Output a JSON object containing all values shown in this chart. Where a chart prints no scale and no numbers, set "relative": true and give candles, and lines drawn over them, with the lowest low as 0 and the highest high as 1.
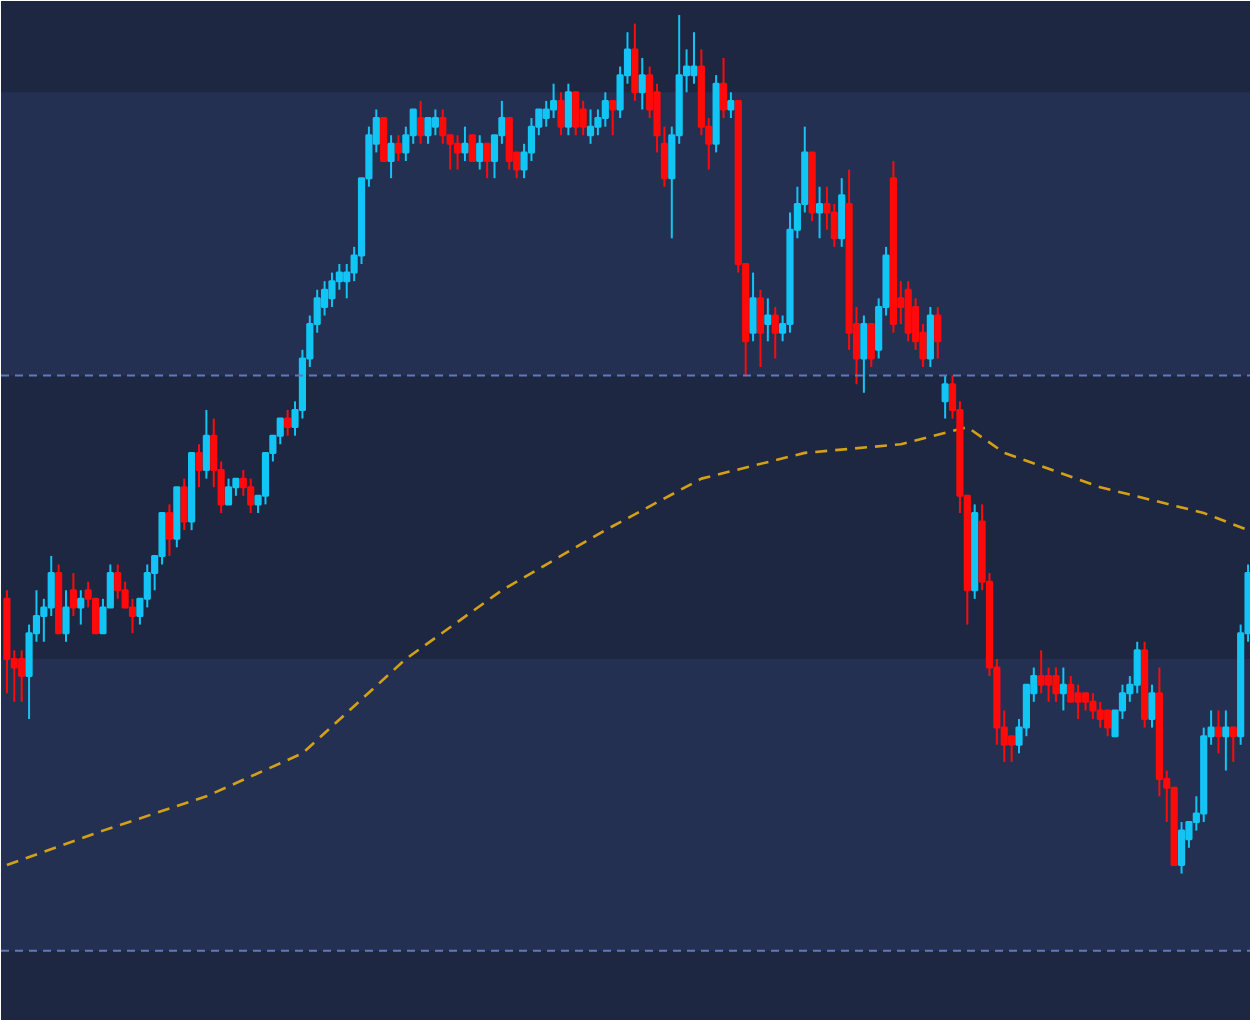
{
  "chart_data": {
    "type": "candlestick",
    "relative": true,
    "categories": [
      null,
      null,
      null,
      null,
      null,
      null,
      null,
      null,
      null,
      null,
      null,
      null,
      null,
      null,
      null,
      null,
      null,
      null,
      null,
      null,
      null,
      null,
      null,
      null,
      null,
      null,
      null,
      null,
      null,
      null,
      null,
      null,
      null,
      null,
      null,
      null,
      null,
      null,
      null,
      null,
      null,
      null,
      null,
      null,
      null,
      null,
      null,
      null,
      null,
      null,
      null,
      null,
      null,
      null,
      null,
      null,
      null,
      null,
      null,
      null,
      null,
      null,
      null,
      null,
      null,
      null,
      null,
      null,
      null,
      null,
      null,
      null,
      null,
      null,
      null,
      null,
      null,
      null,
      null,
      null,
      null,
      null,
      null,
      null,
      null,
      null,
      null,
      null,
      null,
      null,
      null,
      null,
      null,
      null,
      null,
      null,
      null,
      null,
      null,
      null,
      null,
      null,
      null,
      null,
      null,
      null,
      null,
      null,
      null,
      null,
      null,
      null,
      null,
      null,
      null,
      null,
      null,
      null,
      null,
      null,
      null,
      null,
      null,
      null,
      null,
      null,
      null,
      null,
      null,
      null,
      null,
      null,
      null,
      null,
      null,
      null,
      null,
      null,
      null,
      null,
      null,
      null,
      null,
      null,
      null,
      null,
      null,
      null,
      null,
      null,
      null,
      null,
      null,
      null,
      null,
      null,
      null,
      null,
      null,
      null,
      null,
      null,
      null,
      null,
      null,
      null,
      null,
      null,
      null
    ],
    "colors": [
      "#ff0a0a",
      "#ff0a0a",
      "#ff0a0a",
      "#12c5f5",
      "#12c5f5",
      "#12c5f5",
      "#12c5f5",
      "#ff0a0a",
      "#12c5f5",
      "#ff0a0a",
      "#12c5f5",
      "#ff0a0a",
      "#ff0a0a",
      "#12c5f5",
      "#12c5f5",
      "#ff0a0a",
      "#ff0a0a",
      "#ff0a0a",
      "#12c5f5",
      "#12c5f5",
      "#12c5f5",
      "#12c5f5",
      "#ff0a0a",
      "#12c5f5",
      "#ff0a0a",
      "#12c5f5",
      "#ff0a0a",
      "#12c5f5",
      "#ff0a0a",
      "#ff0a0a",
      "#12c5f5",
      "#12c5f5",
      "#ff0a0a",
      "#ff0a0a",
      "#12c5f5",
      "#12c5f5",
      "#12c5f5",
      "#12c5f5",
      "#ff0a0a",
      "#12c5f5",
      "#12c5f5",
      "#12c5f5",
      "#12c5f5",
      "#12c5f5",
      "#12c5f5",
      "#12c5f5",
      "#12c5f5",
      "#12c5f5",
      "#12c5f5",
      "#12c5f5",
      "#12c5f5",
      "#ff0a0a",
      "#12c5f5",
      "#ff0a0a",
      "#12c5f5",
      "#12c5f5",
      "#ff0a0a",
      "#12c5f5",
      "#12c5f5",
      "#ff0a0a",
      "#ff0a0a",
      "#ff0a0a",
      "#12c5f5",
      "#ff0a0a",
      "#12c5f5",
      "#ff0a0a",
      "#12c5f5",
      "#12c5f5",
      "#ff0a0a",
      "#ff0a0a",
      "#12c5f5",
      "#12c5f5",
      "#12c5f5",
      "#12c5f5",
      "#12c5f5",
      "#ff0a0a",
      "#12c5f5",
      "#ff0a0a",
      "#ff0a0a",
      "#12c5f5",
      "#12c5f5",
      "#12c5f5",
      "#ff0a0a",
      "#12c5f5",
      "#12c5f5",
      "#ff0a0a",
      "#12c5f5",
      "#ff0a0a",
      "#ff0a0a",
      "#ff0a0a",
      "#12c5f5",
      "#12c5f5",
      "#12c5f5",
      "#12c5f5",
      "#ff0a0a",
      "#ff0a0a",
      "#12c5f5",
      "#ff0a0a",
      "#12c5f5",
      "#ff0a0a",
      "#ff0a0a",
      "#12c5f5",
      "#ff0a0a",
      "#12c5f5",
      "#ff0a0a",
      "#12c5f5",
      "#12c5f5",
      "#12c5f5",
      "#12c5f5",
      "#ff0a0a",
      "#12c5f5",
      "#ff0a0a",
      "#ff0a0a",
      "#12c5f5",
      "#ff0a0a",
      "#ff0a0a",
      "#12c5f5",
      "#ff0a0a",
      "#12c5f5",
      "#12c5f5",
      "#ff0a0a",
      "#ff0a0a",
      "#ff0a0a",
      "#ff0a0a",
      "#ff0a0a",
      "#12c5f5",
      "#ff0a0a",
      "#12c5f5",
      "#ff0a0a",
      "#ff0a0a",
      "#ff0a0a",
      "#12c5f5",
      "#ff0a0a",
      "#ff0a0a",
      "#ff0a0a",
      "#ff0a0a",
      "#ff0a0a",
      "#12c5f5",
      "#12c5f5",
      "#12c5f5",
      "#ff0a0a",
      "#ff0a0a",
      "#ff0a0a",
      "#12c5f5",
      "#ff0a0a",
      "#ff0a0a",
      "#ff0a0a",
      "#ff0a0a",
      "#ff0a0a",
      "#ff0a0a",
      "#12c5f5",
      "#12c5f5",
      "#12c5f5",
      "#12c5f5",
      "#ff0a0a",
      "#12c5f5",
      "#ff0a0a",
      "#ff0a0a",
      "#ff0a0a",
      "#12c5f5",
      "#12c5f5",
      "#12c5f5",
      "#12c5f5",
      "#12c5f5",
      "#ff0a0a",
      "#12c5f5",
      "#ff0a0a",
      "#12c5f5",
      "#12c5f5"
    ],
    "ohlc": [
      [
        0.32,
        0.33,
        0.21,
        0.25
      ],
      [
        0.25,
        0.26,
        0.2,
        0.24
      ],
      [
        0.25,
        0.26,
        0.2,
        0.23
      ],
      [
        0.23,
        0.29,
        0.18,
        0.28
      ],
      [
        0.28,
        0.33,
        0.27,
        0.3
      ],
      [
        0.3,
        0.32,
        0.27,
        0.31
      ],
      [
        0.31,
        0.37,
        0.3,
        0.35
      ],
      [
        0.35,
        0.36,
        0.28,
        0.28
      ],
      [
        0.28,
        0.33,
        0.27,
        0.31
      ],
      [
        0.33,
        0.35,
        0.3,
        0.31
      ],
      [
        0.31,
        0.33,
        0.29,
        0.32
      ],
      [
        0.33,
        0.34,
        0.31,
        0.32
      ],
      [
        0.32,
        0.32,
        0.28,
        0.28
      ],
      [
        0.28,
        0.32,
        0.28,
        0.31
      ],
      [
        0.31,
        0.36,
        0.31,
        0.35
      ],
      [
        0.35,
        0.36,
        0.32,
        0.33
      ],
      [
        0.33,
        0.34,
        0.31,
        0.31
      ],
      [
        0.31,
        0.32,
        0.28,
        0.3
      ],
      [
        0.3,
        0.32,
        0.29,
        0.32
      ],
      [
        0.32,
        0.36,
        0.31,
        0.35
      ],
      [
        0.35,
        0.37,
        0.33,
        0.37
      ],
      [
        0.37,
        0.42,
        0.36,
        0.42
      ],
      [
        0.42,
        0.43,
        0.37,
        0.39
      ],
      [
        0.39,
        0.45,
        0.38,
        0.45
      ],
      [
        0.45,
        0.46,
        0.4,
        0.41
      ],
      [
        0.41,
        0.49,
        0.4,
        0.49
      ],
      [
        0.49,
        0.5,
        0.45,
        0.47
      ],
      [
        0.47,
        0.54,
        0.46,
        0.51
      ],
      [
        0.51,
        0.53,
        0.45,
        0.47
      ],
      [
        0.47,
        0.48,
        0.42,
        0.43
      ],
      [
        0.43,
        0.46,
        0.43,
        0.45
      ],
      [
        0.45,
        0.46,
        0.44,
        0.46
      ],
      [
        0.46,
        0.47,
        0.44,
        0.45
      ],
      [
        0.45,
        0.46,
        0.42,
        0.43
      ],
      [
        0.43,
        0.44,
        0.42,
        0.44
      ],
      [
        0.44,
        0.49,
        0.43,
        0.49
      ],
      [
        0.49,
        0.51,
        0.48,
        0.51
      ],
      [
        0.51,
        0.53,
        0.5,
        0.53
      ],
      [
        0.53,
        0.54,
        0.51,
        0.52
      ],
      [
        0.52,
        0.55,
        0.51,
        0.54
      ],
      [
        0.54,
        0.61,
        0.53,
        0.6
      ],
      [
        0.6,
        0.65,
        0.59,
        0.64
      ],
      [
        0.64,
        0.68,
        0.63,
        0.67
      ],
      [
        0.66,
        0.69,
        0.65,
        0.68
      ],
      [
        0.67,
        0.7,
        0.66,
        0.69
      ],
      [
        0.69,
        0.71,
        0.68,
        0.7
      ],
      [
        0.69,
        0.71,
        0.67,
        0.7
      ],
      [
        0.7,
        0.73,
        0.69,
        0.72
      ],
      [
        0.72,
        0.81,
        0.71,
        0.81
      ],
      [
        0.81,
        0.87,
        0.8,
        0.86
      ],
      [
        0.85,
        0.89,
        0.84,
        0.88
      ],
      [
        0.88,
        0.88,
        0.83,
        0.83
      ],
      [
        0.83,
        0.86,
        0.81,
        0.85
      ],
      [
        0.85,
        0.86,
        0.83,
        0.84
      ],
      [
        0.84,
        0.87,
        0.83,
        0.86
      ],
      [
        0.86,
        0.89,
        0.85,
        0.89
      ],
      [
        0.88,
        0.9,
        0.85,
        0.86
      ],
      [
        0.86,
        0.88,
        0.85,
        0.88
      ],
      [
        0.87,
        0.89,
        0.86,
        0.88
      ],
      [
        0.88,
        0.89,
        0.85,
        0.86
      ],
      [
        0.86,
        0.86,
        0.82,
        0.85
      ],
      [
        0.85,
        0.86,
        0.82,
        0.84
      ],
      [
        0.84,
        0.87,
        0.83,
        0.85
      ],
      [
        0.86,
        0.86,
        0.83,
        0.83
      ],
      [
        0.83,
        0.86,
        0.82,
        0.85
      ],
      [
        0.85,
        0.85,
        0.81,
        0.83
      ],
      [
        0.83,
        0.86,
        0.81,
        0.86
      ],
      [
        0.86,
        0.9,
        0.85,
        0.88
      ],
      [
        0.88,
        0.88,
        0.82,
        0.83
      ],
      [
        0.84,
        0.84,
        0.81,
        0.82
      ],
      [
        0.82,
        0.85,
        0.81,
        0.84
      ],
      [
        0.84,
        0.88,
        0.83,
        0.87
      ],
      [
        0.87,
        0.89,
        0.86,
        0.89
      ],
      [
        0.88,
        0.9,
        0.87,
        0.89
      ],
      [
        0.89,
        0.92,
        0.88,
        0.9
      ],
      [
        0.9,
        0.91,
        0.86,
        0.87
      ],
      [
        0.87,
        0.92,
        0.86,
        0.91
      ],
      [
        0.91,
        0.91,
        0.86,
        0.87
      ],
      [
        0.89,
        0.9,
        0.86,
        0.87
      ],
      [
        0.86,
        0.89,
        0.85,
        0.87
      ],
      [
        0.87,
        0.89,
        0.86,
        0.88
      ],
      [
        0.88,
        0.91,
        0.87,
        0.9
      ],
      [
        0.9,
        0.9,
        0.86,
        0.89
      ],
      [
        0.89,
        0.94,
        0.88,
        0.93
      ],
      [
        0.93,
        0.98,
        0.92,
        0.96
      ],
      [
        0.96,
        0.99,
        0.9,
        0.91
      ],
      [
        0.91,
        0.95,
        0.89,
        0.93
      ],
      [
        0.93,
        0.94,
        0.88,
        0.89
      ],
      [
        0.91,
        0.92,
        0.84,
        0.86
      ],
      [
        0.85,
        0.87,
        0.8,
        0.81
      ],
      [
        0.81,
        0.87,
        0.74,
        0.86
      ],
      [
        0.86,
        1.0,
        0.85,
        0.93
      ],
      [
        0.93,
        0.96,
        0.91,
        0.94
      ],
      [
        0.93,
        0.98,
        0.92,
        0.94
      ],
      [
        0.94,
        0.96,
        0.86,
        0.87
      ],
      [
        0.87,
        0.88,
        0.82,
        0.85
      ],
      [
        0.85,
        0.93,
        0.84,
        0.92
      ],
      [
        0.92,
        0.95,
        0.88,
        0.89
      ],
      [
        0.89,
        0.91,
        0.88,
        0.9
      ],
      [
        0.9,
        0.9,
        0.7,
        0.71
      ],
      [
        0.71,
        0.71,
        0.58,
        0.62
      ],
      [
        0.63,
        0.7,
        0.62,
        0.67
      ],
      [
        0.67,
        0.68,
        0.59,
        0.63
      ],
      [
        0.64,
        0.67,
        0.62,
        0.65
      ],
      [
        0.65,
        0.66,
        0.6,
        0.63
      ],
      [
        0.63,
        0.65,
        0.62,
        0.64
      ],
      [
        0.64,
        0.77,
        0.63,
        0.75
      ],
      [
        0.75,
        0.8,
        0.74,
        0.78
      ],
      [
        0.78,
        0.87,
        0.77,
        0.84
      ],
      [
        0.84,
        0.84,
        0.76,
        0.77
      ],
      [
        0.77,
        0.8,
        0.74,
        0.78
      ],
      [
        0.78,
        0.8,
        0.75,
        0.77
      ],
      [
        0.77,
        0.78,
        0.73,
        0.74
      ],
      [
        0.74,
        0.81,
        0.73,
        0.79
      ],
      [
        0.78,
        0.82,
        0.61,
        0.63
      ],
      [
        0.64,
        0.66,
        0.57,
        0.6
      ],
      [
        0.6,
        0.65,
        0.56,
        0.64
      ],
      [
        0.64,
        0.64,
        0.59,
        0.6
      ],
      [
        0.61,
        0.67,
        0.6,
        0.66
      ],
      [
        0.66,
        0.73,
        0.65,
        0.72
      ],
      [
        0.81,
        0.83,
        0.63,
        0.64
      ],
      [
        0.67,
        0.69,
        0.64,
        0.66
      ],
      [
        0.68,
        0.69,
        0.62,
        0.63
      ],
      [
        0.66,
        0.67,
        0.61,
        0.62
      ],
      [
        0.63,
        0.64,
        0.59,
        0.6
      ],
      [
        0.6,
        0.66,
        0.59,
        0.65
      ],
      [
        0.65,
        0.66,
        0.6,
        0.62
      ],
      [
        0.55,
        0.58,
        0.53,
        0.57
      ],
      [
        0.57,
        0.58,
        0.53,
        0.54
      ],
      [
        0.54,
        0.55,
        0.42,
        0.44
      ],
      [
        0.44,
        0.44,
        0.29,
        0.33
      ],
      [
        0.33,
        0.43,
        0.32,
        0.42
      ],
      [
        0.41,
        0.43,
        0.33,
        0.34
      ],
      [
        0.34,
        0.35,
        0.23,
        0.24
      ],
      [
        0.24,
        0.25,
        0.15,
        0.17
      ],
      [
        0.17,
        0.19,
        0.13,
        0.15
      ],
      [
        0.16,
        0.16,
        0.13,
        0.15
      ],
      [
        0.15,
        0.18,
        0.14,
        0.17
      ],
      [
        0.17,
        0.22,
        0.16,
        0.22
      ],
      [
        0.21,
        0.24,
        0.2,
        0.23
      ],
      [
        0.23,
        0.26,
        0.21,
        0.22
      ],
      [
        0.23,
        0.24,
        0.2,
        0.22
      ],
      [
        0.23,
        0.24,
        0.2,
        0.21
      ],
      [
        0.21,
        0.24,
        0.19,
        0.22
      ],
      [
        0.22,
        0.23,
        0.2,
        0.2
      ],
      [
        0.21,
        0.22,
        0.18,
        0.2
      ],
      [
        0.21,
        0.21,
        0.19,
        0.2
      ],
      [
        0.2,
        0.21,
        0.18,
        0.19
      ],
      [
        0.19,
        0.2,
        0.17,
        0.18
      ],
      [
        0.19,
        0.19,
        0.16,
        0.17
      ],
      [
        0.16,
        0.19,
        0.16,
        0.19
      ],
      [
        0.19,
        0.22,
        0.18,
        0.21
      ],
      [
        0.21,
        0.23,
        0.2,
        0.22
      ],
      [
        0.22,
        0.27,
        0.21,
        0.26
      ],
      [
        0.26,
        0.27,
        0.17,
        0.18
      ],
      [
        0.18,
        0.22,
        0.17,
        0.21
      ],
      [
        0.21,
        0.24,
        0.09,
        0.11
      ],
      [
        0.11,
        0.12,
        0.06,
        0.1
      ],
      [
        0.1,
        0.1,
        0.01,
        0.01
      ],
      [
        0.01,
        0.06,
        0.0,
        0.05
      ],
      [
        0.04,
        0.06,
        0.03,
        0.06
      ],
      [
        0.06,
        0.09,
        0.05,
        0.07
      ],
      [
        0.07,
        0.17,
        0.06,
        0.16
      ],
      [
        0.16,
        0.19,
        0.15,
        0.17
      ],
      [
        0.17,
        0.19,
        0.14,
        0.16
      ],
      [
        0.16,
        0.19,
        0.12,
        0.17
      ],
      [
        0.17,
        0.17,
        0.13,
        0.16
      ],
      [
        0.16,
        0.29,
        0.15,
        0.28
      ],
      [
        0.28,
        0.36,
        0.27,
        0.35
      ]
    ],
    "series": [
      {
        "type": "line",
        "color": "#d4a017",
        "line_style": "dashed",
        "values": [
          0.01,
          null,
          null,
          null,
          null,
          null,
          null,
          null,
          null,
          null,
          null,
          null,
          null,
          0.05,
          null,
          null,
          null,
          null,
          null,
          null,
          null,
          null,
          null,
          null,
          null,
          null,
          null,
          0.09,
          null,
          null,
          null,
          null,
          null,
          null,
          null,
          null,
          null,
          null,
          null,
          null,
          0.14,
          null,
          null,
          null,
          null,
          null,
          null,
          null,
          null,
          null,
          null,
          null,
          null,
          null,
          0.25,
          null,
          null,
          null,
          null,
          null,
          null,
          null,
          null,
          null,
          null,
          null,
          null,
          0.33,
          null,
          null,
          null,
          null,
          null,
          null,
          null,
          null,
          null,
          null,
          null,
          null,
          null,
          0.4,
          null,
          null,
          null,
          null,
          null,
          null,
          null,
          null,
          null,
          null,
          null,
          null,
          0.46,
          null,
          null,
          null,
          null,
          null,
          null,
          null,
          null,
          null,
          null,
          null,
          null,
          null,
          0.49,
          null,
          null,
          null,
          null,
          null,
          null,
          null,
          null,
          null,
          null,
          null,
          null,
          0.5,
          null,
          null,
          null,
          null,
          null,
          null,
          null,
          null,
          0.52,
          null,
          null,
          null,
          null,
          0.49,
          null,
          null,
          null,
          null,
          null,
          null,
          null,
          null,
          null,
          null,
          null,
          null,
          0.45,
          null,
          null,
          null,
          null,
          null,
          null,
          null,
          null,
          null,
          null,
          null,
          null,
          null,
          0.42,
          null,
          null,
          null,
          null,
          null,
          0.4
        ]
      }
    ],
    "ref_lines": [
      {
        "axis": "y",
        "value": 0.58,
        "color": "#5f78c0",
        "line_style": "dashed"
      },
      {
        "axis": "y",
        "value": -0.09,
        "color": "#5f78c0",
        "line_style": "dashed"
      }
    ],
    "bands": [
      {
        "axis": "y",
        "from": 0.58,
        "to": 0.91,
        "color": "#243052"
      },
      {
        "axis": "y",
        "from": -0.09,
        "to": 0.25,
        "color": "#243052"
      }
    ],
    "grid": false
  }
}
